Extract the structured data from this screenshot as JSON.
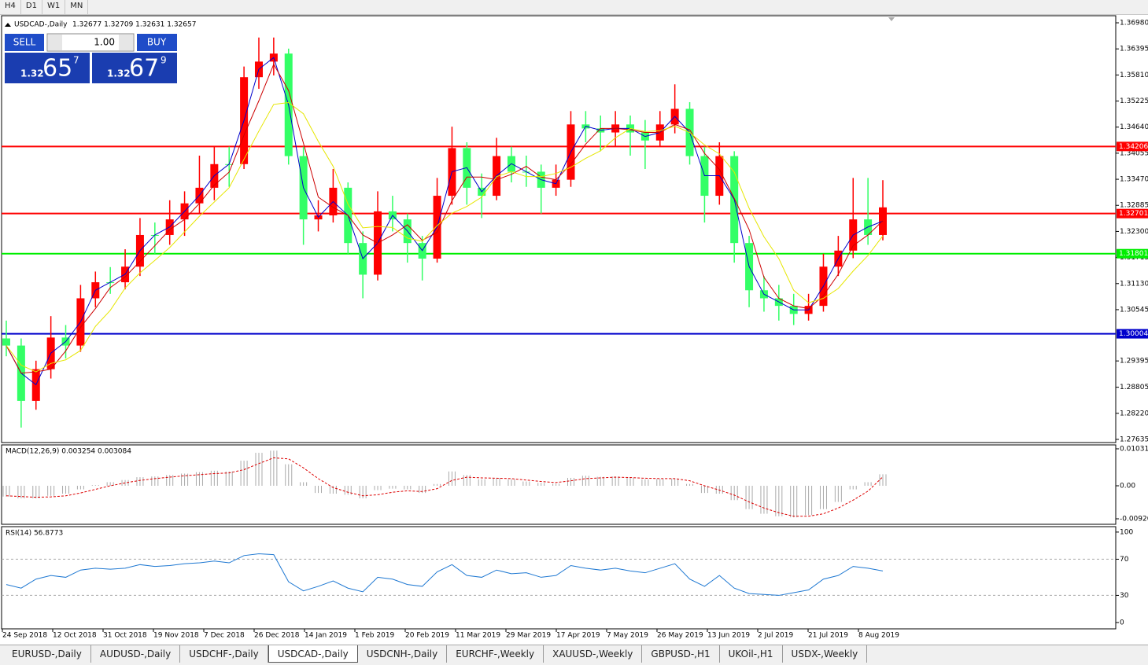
{
  "toolbar": [
    "H4",
    "D1",
    "W1",
    "MN"
  ],
  "trade_panel": {
    "sell": "SELL",
    "lot": "1.00",
    "buy": "BUY",
    "sell_price": {
      "big": "1.32",
      "pips": "65",
      "point": "7"
    },
    "buy_price": {
      "big": "1.32",
      "pips": "67",
      "point": "9"
    }
  },
  "tabs": [
    "EURUSD-,Daily",
    "AUDUSD-,Daily",
    "USDCHF-,Daily",
    "USDCAD-,Daily",
    "USDCNH-,Daily",
    "EURCHF-,Weekly",
    "XAUUSD-,Weekly",
    "GBPUSD-,H1",
    "UKOil-,H1",
    "USDX-,Weekly"
  ],
  "active_tab": 3,
  "chart_data": {
    "type": "candlestick",
    "symbol": "USDCAD-,Daily",
    "ohlc_text": "1.32677 1.32709 1.32631 1.32657",
    "up_color": "#ff0000",
    "down_color": "#33ff66",
    "x_labels": [
      "24 Sep 2018",
      "12 Oct 2018",
      "31 Oct 2018",
      "19 Nov 2018",
      "7 Dec 2018",
      "26 Dec 2018",
      "14 Jan 2019",
      "1 Feb 2019",
      "20 Feb 2019",
      "11 Mar 2019",
      "29 Mar 2019",
      "17 Apr 2019",
      "7 May 2019",
      "26 May 2019",
      "13 Jun 2019",
      "2 Jul 2019",
      "21 Jul 2019",
      "8 Aug 2019"
    ],
    "open": [
      1.299,
      1.2974,
      1.285,
      1.2921,
      1.2992,
      1.2974,
      1.308,
      1.3116,
      1.3116,
      1.3151,
      1.3222,
      1.3222,
      1.3257,
      1.3293,
      1.3328,
      1.3381,
      1.3381,
      1.3576,
      1.3611,
      1.3629,
      1.3399,
      1.3257,
      1.3266,
      1.3328,
      1.3204,
      1.3133,
      1.3275,
      1.3257,
      1.3204,
      1.3169,
      1.331,
      1.3417,
      1.3328,
      1.331,
      1.3399,
      1.3364,
      1.3364,
      1.3328,
      1.3346,
      1.347,
      1.3461,
      1.3452,
      1.347,
      1.3452,
      1.3434,
      1.347,
      1.3505,
      1.3399,
      1.331,
      1.3399,
      1.3204,
      1.3098,
      1.308,
      1.3063,
      1.3045,
      1.3063,
      1.3151,
      1.3187,
      1.3257,
      1.3222
    ],
    "high": [
      1.303,
      1.299,
      1.294,
      1.304,
      1.302,
      1.311,
      1.314,
      1.315,
      1.319,
      1.326,
      1.325,
      1.33,
      1.332,
      1.34,
      1.342,
      1.342,
      1.36,
      1.3665,
      1.3665,
      1.364,
      1.342,
      1.33,
      1.337,
      1.334,
      1.323,
      1.332,
      1.331,
      1.327,
      1.322,
      1.335,
      1.3465,
      1.343,
      1.336,
      1.344,
      1.342,
      1.34,
      1.338,
      1.338,
      1.35,
      1.35,
      1.349,
      1.35,
      1.349,
      1.348,
      1.35,
      1.356,
      1.352,
      1.342,
      1.343,
      1.341,
      1.322,
      1.313,
      1.311,
      1.309,
      1.309,
      1.318,
      1.322,
      1.335,
      1.335,
      1.3345
    ],
    "low": [
      1.295,
      1.279,
      1.283,
      1.29,
      1.2945,
      1.296,
      1.306,
      1.309,
      1.31,
      1.313,
      1.318,
      1.32,
      1.322,
      1.327,
      1.33,
      1.333,
      1.337,
      1.355,
      1.358,
      1.338,
      1.32,
      1.323,
      1.325,
      1.318,
      1.308,
      1.312,
      1.323,
      1.316,
      1.312,
      1.316,
      1.329,
      1.329,
      1.326,
      1.33,
      1.334,
      1.333,
      1.327,
      1.331,
      1.333,
      1.343,
      1.341,
      1.342,
      1.34,
      1.337,
      1.342,
      1.345,
      1.338,
      1.325,
      1.329,
      1.316,
      1.306,
      1.305,
      1.303,
      1.302,
      1.303,
      1.305,
      1.313,
      1.317,
      1.32,
      1.321
    ],
    "close": [
      1.2974,
      1.285,
      1.2921,
      1.2992,
      1.2974,
      1.308,
      1.3116,
      1.3116,
      1.3151,
      1.3222,
      1.3222,
      1.3257,
      1.3293,
      1.3328,
      1.3381,
      1.3381,
      1.3576,
      1.3611,
      1.3629,
      1.3399,
      1.3257,
      1.3266,
      1.3328,
      1.3204,
      1.3133,
      1.3275,
      1.3257,
      1.3204,
      1.3169,
      1.331,
      1.3417,
      1.3328,
      1.331,
      1.3399,
      1.3364,
      1.3364,
      1.3328,
      1.3346,
      1.347,
      1.3461,
      1.3452,
      1.347,
      1.3452,
      1.3434,
      1.347,
      1.3505,
      1.3399,
      1.331,
      1.3399,
      1.3204,
      1.3098,
      1.308,
      1.3063,
      1.3045,
      1.3063,
      1.3151,
      1.3187,
      1.3257,
      1.3222,
      1.3284
    ],
    "moving_averages": [
      {
        "color": "#0000cc",
        "values": [
          1.2974,
          1.2912,
          1.2886,
          1.2957,
          1.2983,
          1.3027,
          1.3098,
          1.3116,
          1.3134,
          1.3187,
          1.3222,
          1.324,
          1.3275,
          1.3311,
          1.3355,
          1.3381,
          1.3479,
          1.3594,
          1.362,
          1.3514,
          1.3328,
          1.3262,
          1.3297,
          1.3266,
          1.3169,
          1.3204,
          1.3266,
          1.3231,
          1.3187,
          1.324,
          1.3364,
          1.3373,
          1.3319,
          1.3355,
          1.3382,
          1.3364,
          1.3346,
          1.3337,
          1.3408,
          1.3466,
          1.3457,
          1.3461,
          1.3461,
          1.3443,
          1.3452,
          1.3488,
          1.3452,
          1.3355,
          1.3355,
          1.3302,
          1.3151,
          1.3089,
          1.3072,
          1.3054,
          1.3054,
          1.3107,
          1.3169,
          1.3222,
          1.324,
          1.3253
        ]
      },
      {
        "color": "#cc0000",
        "values": [
          1.2974,
          1.2912,
          1.2915,
          1.2921,
          1.2962,
          1.3015,
          1.3057,
          1.3104,
          1.3128,
          1.3163,
          1.3198,
          1.3234,
          1.3257,
          1.3293,
          1.3334,
          1.3363,
          1.3446,
          1.3523,
          1.3605,
          1.3546,
          1.3428,
          1.3307,
          1.3284,
          1.3266,
          1.3222,
          1.3204,
          1.3222,
          1.3245,
          1.321,
          1.3228,
          1.3299,
          1.3352,
          1.3352,
          1.3346,
          1.3358,
          1.3376,
          1.3352,
          1.3346,
          1.3381,
          1.3426,
          1.3461,
          1.3461,
          1.3458,
          1.3452,
          1.3452,
          1.347,
          1.3458,
          1.3405,
          1.3369,
          1.3304,
          1.3234,
          1.3127,
          1.308,
          1.3063,
          1.3057,
          1.3086,
          1.3134,
          1.3198,
          1.3222,
          1.3254
        ]
      },
      {
        "color": "#e6e600",
        "values": [
          1.2974,
          1.293,
          1.2915,
          1.2934,
          1.2942,
          1.2963,
          1.3017,
          1.3053,
          1.3103,
          1.3137,
          1.3165,
          1.3194,
          1.3229,
          1.3264,
          1.3296,
          1.3328,
          1.3392,
          1.3455,
          1.3515,
          1.3519,
          1.3494,
          1.3432,
          1.3376,
          1.3291,
          1.3238,
          1.3241,
          1.3239,
          1.3215,
          1.3208,
          1.3243,
          1.3271,
          1.3286,
          1.3307,
          1.3353,
          1.3364,
          1.3353,
          1.3353,
          1.336,
          1.3374,
          1.3394,
          1.3411,
          1.344,
          1.3461,
          1.3454,
          1.3456,
          1.3466,
          1.3452,
          1.3424,
          1.3404,
          1.3363,
          1.3282,
          1.3218,
          1.3169,
          1.3098,
          1.307,
          1.308,
          1.3102,
          1.3141,
          1.3176,
          1.322
        ]
      }
    ],
    "levels": [
      {
        "value": 1.34206,
        "color": "#ff0000"
      },
      {
        "value": 1.32701,
        "color": "#ff0000"
      },
      {
        "value": 1.31801,
        "color": "#00ee00"
      },
      {
        "value": 1.30004,
        "color": "#0000cc"
      }
    ],
    "ylim": [
      1.27564,
      1.37139
    ],
    "yticks": [
      {
        "value": 1.3698,
        "label": "1.36980"
      },
      1.36395,
      {
        "value": 1.3581,
        "label": "1.35810"
      },
      1.35225,
      {
        "value": 1.3464,
        "label": "1.34640"
      },
      1.34055,
      {
        "value": 1.3347,
        "label": "1.33470"
      },
      1.32885,
      {
        "value": 1.323,
        "label": "1.32300"
      },
      1.31715,
      {
        "value": 1.3113,
        "label": "1.31130"
      },
      1.30545,
      1.29395,
      1.28805,
      {
        "value": 1.2822,
        "label": "1.28220"
      },
      1.27635
    ],
    "macd": {
      "label": "MACD(12,26,9) 0.003254 0.003084",
      "hist_color": "#aaaaaa",
      "signal_color": "#dd0000",
      "histogram": [
        -0.003,
        -0.0035,
        -0.0035,
        -0.0028,
        -0.0022,
        -0.001,
        0.0002,
        0.001,
        0.0016,
        0.0024,
        0.0026,
        0.003,
        0.0034,
        0.0038,
        0.0042,
        0.004,
        0.007,
        0.0092,
        0.0098,
        0.006,
        0.001,
        -0.002,
        -0.0022,
        -0.0025,
        -0.0035,
        -0.0012,
        -0.0008,
        -0.001,
        -0.002,
        0.0005,
        0.004,
        0.003,
        0.0018,
        0.0022,
        0.0018,
        0.0012,
        0.0008,
        0.0006,
        0.0022,
        0.0028,
        0.0025,
        0.0026,
        0.0022,
        0.0018,
        0.0019,
        0.002,
        0.0005,
        -0.002,
        -0.0022,
        -0.004,
        -0.0065,
        -0.0078,
        -0.0085,
        -0.0088,
        -0.0082,
        -0.0065,
        -0.0045,
        -0.001,
        0.001,
        0.0032
      ],
      "signal": [
        -0.0028,
        -0.003,
        -0.0032,
        -0.0031,
        -0.0028,
        -0.002,
        -0.001,
        0.0,
        0.0008,
        0.0015,
        0.002,
        0.0024,
        0.0028,
        0.0031,
        0.0034,
        0.0036,
        0.0045,
        0.0062,
        0.0078,
        0.0075,
        0.005,
        0.002,
        -0.0005,
        -0.0018,
        -0.0028,
        -0.0025,
        -0.0018,
        -0.0014,
        -0.0016,
        -0.0008,
        0.0015,
        0.0024,
        0.0022,
        0.0021,
        0.002,
        0.0016,
        0.0012,
        0.0009,
        0.0014,
        0.002,
        0.0022,
        0.0024,
        0.0023,
        0.0021,
        0.002,
        0.002,
        0.0014,
        0.0,
        -0.0012,
        -0.0026,
        -0.0045,
        -0.0062,
        -0.0075,
        -0.0085,
        -0.0085,
        -0.0078,
        -0.0062,
        -0.004,
        -0.0015,
        0.0025
      ],
      "ylim": [
        -0.01074,
        0.0114
      ],
      "yticks": [
        0.010311,
        {
          "value": 0,
          "label": "0.00"
        },
        -0.009208
      ]
    },
    "rsi": {
      "label": "RSI(14) 56.8773",
      "color": "#1e78d2",
      "values": [
        42,
        38,
        48,
        52,
        50,
        58,
        60,
        59,
        60,
        64,
        62,
        63,
        65,
        66,
        68,
        66,
        74,
        76,
        75,
        45,
        35,
        40,
        46,
        38,
        34,
        50,
        48,
        42,
        40,
        56,
        64,
        52,
        50,
        58,
        54,
        55,
        50,
        52,
        63,
        60,
        58,
        60,
        57,
        55,
        60,
        65,
        48,
        40,
        52,
        38,
        32,
        31,
        30,
        33,
        36,
        48,
        52,
        62,
        60,
        57
      ],
      "ylim": [
        -7,
        106
      ],
      "yticks": [
        100,
        70,
        30,
        0
      ],
      "dashed_levels": [
        70,
        30
      ]
    }
  }
}
